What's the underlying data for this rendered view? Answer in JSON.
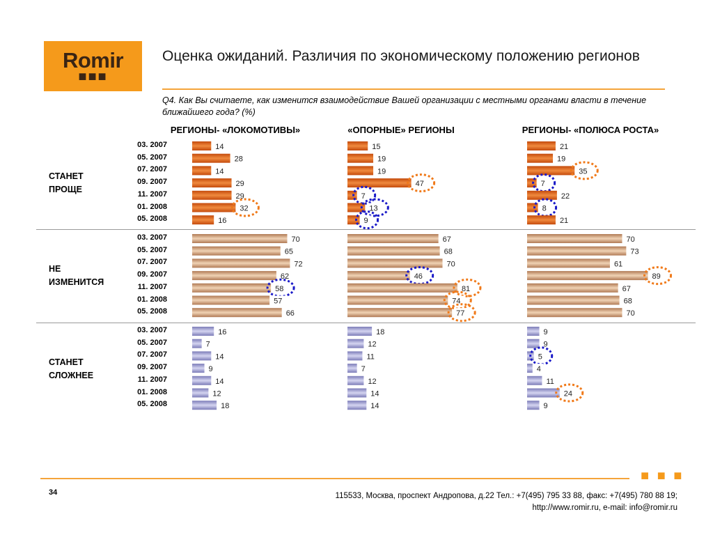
{
  "logo": {
    "text": "Romir",
    "dots": "■■■"
  },
  "title": "Оценка ожиданий. Различия по экономическому положению регионов",
  "question": "Q4. Как Вы считаете, как изменится взаимодействие Вашей организации с местными органами власти в течение ближайшего года? (%)",
  "chart_data": {
    "type": "bar",
    "orientation": "horizontal",
    "panels": [
      "РЕГИОНЫ- «ЛОКОМОТИВЫ»",
      "«ОПОРНЫЕ» РЕГИОНЫ",
      "РЕГИОНЫ- «ПОЛЮСА РОСТА»"
    ],
    "categories": [
      "03. 2007",
      "05. 2007",
      "07. 2007",
      "09. 2007",
      "11. 2007",
      "01. 2008",
      "05. 2008"
    ],
    "groups": [
      {
        "label": "СТАНЕТ ПРОЩЕ",
        "color": "#d9530f",
        "values": [
          [
            14,
            28,
            14,
            29,
            29,
            32,
            16
          ],
          [
            15,
            19,
            19,
            47,
            7,
            13,
            9
          ],
          [
            21,
            19,
            35,
            7,
            22,
            8,
            21
          ]
        ]
      },
      {
        "label": "НЕ ИЗМЕНИТСЯ",
        "color": "#c8926a",
        "values": [
          [
            70,
            65,
            72,
            62,
            58,
            57,
            66
          ],
          [
            67,
            68,
            70,
            46,
            81,
            74,
            77
          ],
          [
            70,
            73,
            61,
            89,
            67,
            68,
            70
          ]
        ]
      },
      {
        "label": "СТАНЕТ СЛОЖНЕЕ",
        "color": "#9a9ad2",
        "values": [
          [
            16,
            7,
            14,
            9,
            14,
            12,
            18
          ],
          [
            18,
            12,
            11,
            7,
            12,
            14,
            14
          ],
          [
            9,
            9,
            5,
            4,
            11,
            24,
            9
          ]
        ]
      }
    ],
    "highlights": {
      "increase_color": "#f07a1a",
      "decrease_color": "#1a1ac8",
      "marks": [
        {
          "group": 0,
          "panel": 0,
          "row": 5,
          "kind": "increase"
        },
        {
          "group": 0,
          "panel": 1,
          "row": 3,
          "kind": "increase"
        },
        {
          "group": 0,
          "panel": 1,
          "row": 4,
          "kind": "decrease"
        },
        {
          "group": 0,
          "panel": 1,
          "row": 5,
          "kind": "decrease"
        },
        {
          "group": 0,
          "panel": 1,
          "row": 6,
          "kind": "decrease"
        },
        {
          "group": 0,
          "panel": 2,
          "row": 2,
          "kind": "increase"
        },
        {
          "group": 0,
          "panel": 2,
          "row": 3,
          "kind": "decrease"
        },
        {
          "group": 0,
          "panel": 2,
          "row": 5,
          "kind": "decrease"
        },
        {
          "group": 1,
          "panel": 0,
          "row": 4,
          "kind": "decrease"
        },
        {
          "group": 1,
          "panel": 1,
          "row": 3,
          "kind": "decrease"
        },
        {
          "group": 1,
          "panel": 1,
          "row": 4,
          "kind": "increase"
        },
        {
          "group": 1,
          "panel": 1,
          "row": 5,
          "kind": "increase"
        },
        {
          "group": 1,
          "panel": 1,
          "row": 6,
          "kind": "increase"
        },
        {
          "group": 1,
          "panel": 2,
          "row": 3,
          "kind": "increase"
        },
        {
          "group": 2,
          "panel": 2,
          "row": 2,
          "kind": "decrease"
        },
        {
          "group": 2,
          "panel": 2,
          "row": 5,
          "kind": "increase"
        }
      ]
    }
  },
  "footer": {
    "page": "34",
    "address": "115533, Москва, проспект Андропова, д.22   Тел.: +7(495) 795 33 88, факс: +7(495) 780 88 19;",
    "web": "http://www.romir.ru, e-mail: info@romir.ru",
    "dots": "■ ■ ■"
  }
}
